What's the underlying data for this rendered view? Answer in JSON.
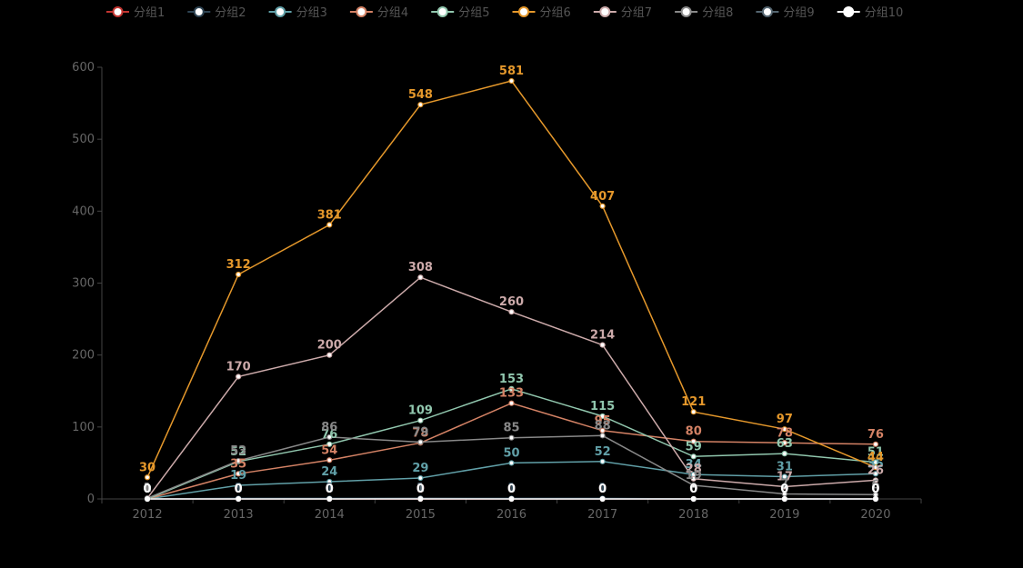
{
  "chart_data": {
    "type": "line",
    "x": [
      "2012",
      "2013",
      "2014",
      "2015",
      "2016",
      "2017",
      "2018",
      "2019",
      "2020"
    ],
    "ylim": [
      0,
      600
    ],
    "yticks": [
      0,
      100,
      200,
      300,
      400,
      500,
      600
    ],
    "grid": false,
    "legend_position": "top",
    "background": "#000000",
    "series": [
      {
        "name": "分组1",
        "color": "#c23531",
        "values": [
          0,
          0,
          0,
          0,
          0,
          0,
          0,
          0,
          0
        ]
      },
      {
        "name": "分组2",
        "color": "#2f4554",
        "values": [
          0,
          1,
          1,
          1,
          1,
          1,
          0,
          0,
          0
        ]
      },
      {
        "name": "分组3",
        "color": "#61a0a8",
        "values": [
          0,
          19,
          24,
          29,
          50,
          52,
          34,
          31,
          35
        ]
      },
      {
        "name": "分组4",
        "color": "#d48265",
        "values": [
          0,
          35,
          54,
          78,
          133,
          95,
          80,
          78,
          76
        ]
      },
      {
        "name": "分组5",
        "color": "#91c7ae",
        "values": [
          0,
          52,
          76,
          109,
          153,
          115,
          59,
          63,
          51
        ]
      },
      {
        "name": "分组6",
        "color": "#e5982b",
        "values": [
          30,
          312,
          381,
          548,
          581,
          407,
          121,
          97,
          44
        ]
      },
      {
        "name": "分组7",
        "color": "#ccaaaa",
        "values": [
          1,
          170,
          200,
          308,
          260,
          214,
          28,
          17,
          26
        ]
      },
      {
        "name": "分组8",
        "color": "#888888",
        "values": [
          1,
          53,
          86,
          79,
          85,
          88,
          19,
          7,
          6
        ]
      },
      {
        "name": "分组9",
        "color": "#546570",
        "values": [
          0,
          0,
          0,
          1,
          0,
          0,
          0,
          0,
          0
        ]
      },
      {
        "name": "分组10",
        "color": "#ffffff",
        "values": [
          0,
          0,
          0,
          0,
          0,
          0,
          0,
          0,
          0
        ]
      }
    ]
  }
}
